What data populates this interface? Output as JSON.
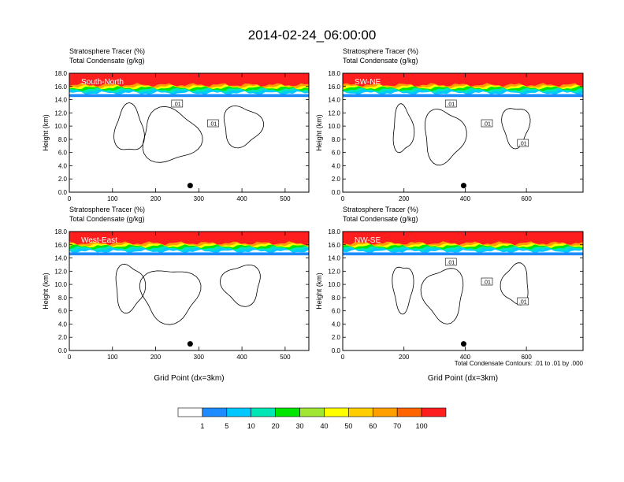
{
  "title": "2014-02-24_06:00:00",
  "colors": {
    "cb_levels": [
      "#ffffff",
      "#1e8cff",
      "#00c8ff",
      "#00e6b4",
      "#00e600",
      "#a0e632",
      "#ffff00",
      "#ffcd00",
      "#ffa000",
      "#ff6400",
      "#ff1e1e"
    ],
    "contour": "#000000"
  },
  "colorbar": {
    "labels": [
      "1",
      "5",
      "10",
      "20",
      "30",
      "40",
      "50",
      "60",
      "70",
      "100"
    ]
  },
  "footnote": "Total Condensate Contours: .01 to .01 by .000",
  "chart_data": [
    {
      "type": "heatmap",
      "panel_label": "South-North",
      "header_line1": "Stratosphere Tracer   (%)",
      "header_line2": "Total Condensate   (g/kg)",
      "ylabel": "Height (km)",
      "xlabel": "",
      "xlim": [
        0,
        555
      ],
      "ylim": [
        0,
        18
      ],
      "x_ticks": [
        "0",
        "100",
        "200",
        "300",
        "400",
        "500"
      ],
      "y_ticks": [
        "0.0",
        "2.0",
        "4.0",
        "6.0",
        "8.0",
        "10.0",
        "12.0",
        "14.0",
        "16.0",
        "18.0"
      ],
      "contour_labels": [
        ".01",
        ".01"
      ],
      "marker": {
        "x": 280,
        "y": 1.0
      },
      "tracer_base_km": 15.0
    },
    {
      "type": "heatmap",
      "panel_label": "SW-NE",
      "header_line1": "Stratosphere Tracer   (%)",
      "header_line2": "Total Condensate   (g/kg)",
      "ylabel": "Height (km)",
      "xlabel": "",
      "xlim": [
        0,
        785
      ],
      "ylim": [
        0,
        18
      ],
      "x_ticks": [
        "0",
        "200",
        "400",
        "600"
      ],
      "y_ticks": [
        "0.0",
        "2.0",
        "4.0",
        "6.0",
        "8.0",
        "10.0",
        "12.0",
        "14.0",
        "16.0",
        "18.0"
      ],
      "contour_labels": [
        ".01",
        ".01",
        ".01"
      ],
      "marker": {
        "x": 395,
        "y": 1.0
      },
      "tracer_base_km": 15.0
    },
    {
      "type": "heatmap",
      "panel_label": "West-East",
      "header_line1": "Stratosphere Tracer   (%)",
      "header_line2": "Total Condensate   (g/kg)",
      "ylabel": "Height (km)",
      "xlabel": "Grid Point (dx=3km)",
      "xlim": [
        0,
        555
      ],
      "ylim": [
        0,
        18
      ],
      "x_ticks": [
        "0",
        "100",
        "200",
        "300",
        "400",
        "500"
      ],
      "y_ticks": [
        "0.0",
        "2.0",
        "4.0",
        "6.0",
        "8.0",
        "10.0",
        "12.0",
        "14.0",
        "16.0",
        "18.0"
      ],
      "contour_labels": [],
      "marker": {
        "x": 280,
        "y": 1.0
      },
      "tracer_base_km": 15.0
    },
    {
      "type": "heatmap",
      "panel_label": "NW-SE",
      "header_line1": "Stratosphere Tracer   (%)",
      "header_line2": "Total Condensate   (g/kg)",
      "ylabel": "Height (km)",
      "xlabel": "Grid Point (dx=3km)",
      "xlim": [
        0,
        785
      ],
      "ylim": [
        0,
        18
      ],
      "x_ticks": [
        "0",
        "200",
        "400",
        "600"
      ],
      "y_ticks": [
        "0.0",
        "2.0",
        "4.0",
        "6.0",
        "8.0",
        "10.0",
        "12.0",
        "14.0",
        "16.0",
        "18.0"
      ],
      "contour_labels": [
        ".01",
        ".01",
        ".01"
      ],
      "marker": {
        "x": 395,
        "y": 1.0
      },
      "tracer_base_km": 15.0
    }
  ]
}
